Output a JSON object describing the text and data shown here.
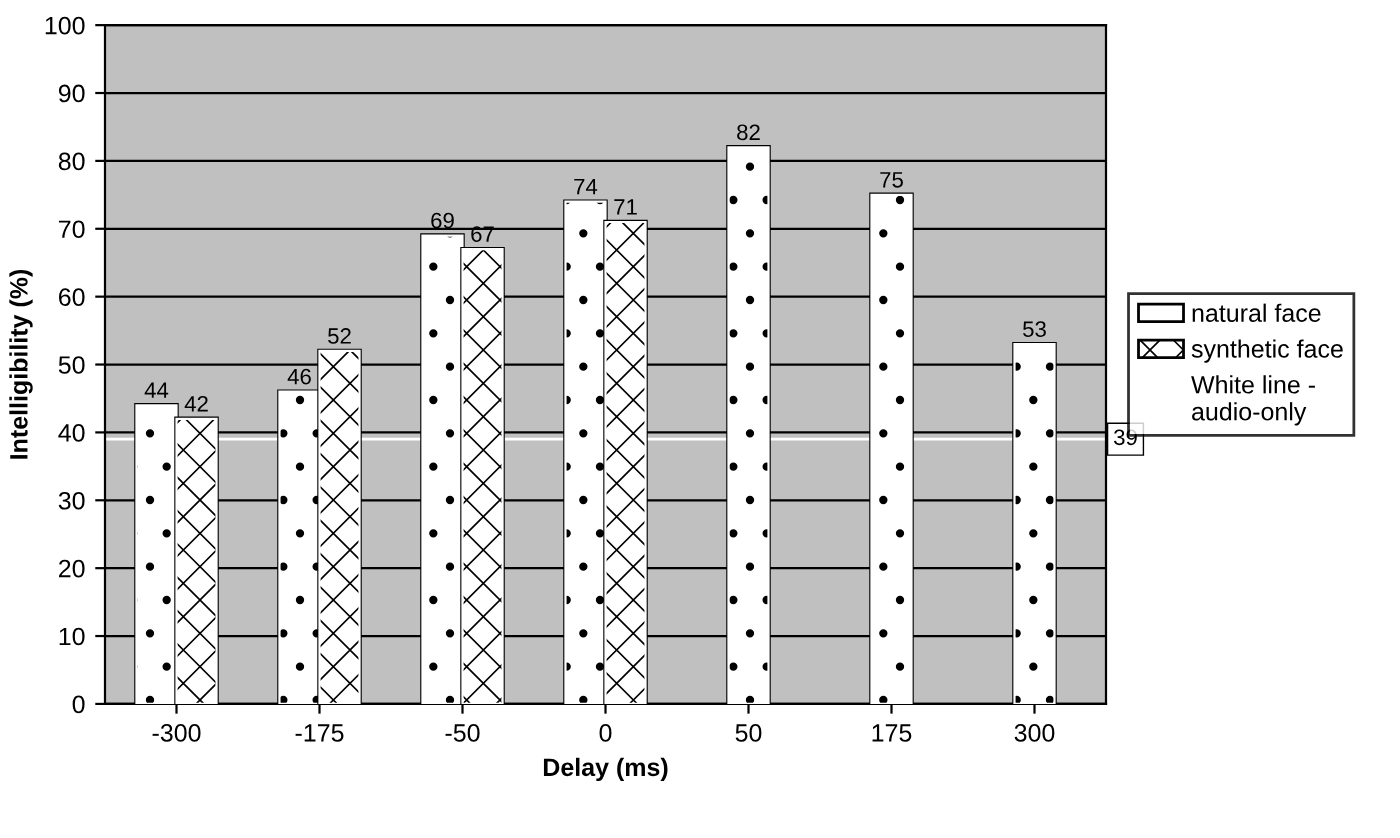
{
  "chart_data": {
    "type": "bar",
    "xlabel": "Delay (ms)",
    "ylabel": "Intelligibility (%)",
    "categories": [
      "-300",
      "-175",
      "-50",
      "0",
      "50",
      "175",
      "300"
    ],
    "series": [
      {
        "name": "natural face",
        "color": "#ffffff",
        "values": [
          44,
          46,
          69,
          74,
          82,
          75,
          53
        ]
      },
      {
        "name": "synthetic face",
        "color": "#ffffff",
        "values": [
          42,
          52,
          67,
          71,
          null,
          null,
          null
        ]
      }
    ],
    "ylim": [
      0,
      100
    ],
    "yticks": [
      0,
      10,
      20,
      30,
      40,
      50,
      60,
      70,
      80,
      90,
      100
    ],
    "grid": "y",
    "legend": "right",
    "data_labels": true,
    "ref_lines": [
      {
        "axis": "y",
        "value": 39,
        "label": "39",
        "color": "#ffffff"
      }
    ],
    "annotations": [
      "White line - audio-only"
    ]
  }
}
